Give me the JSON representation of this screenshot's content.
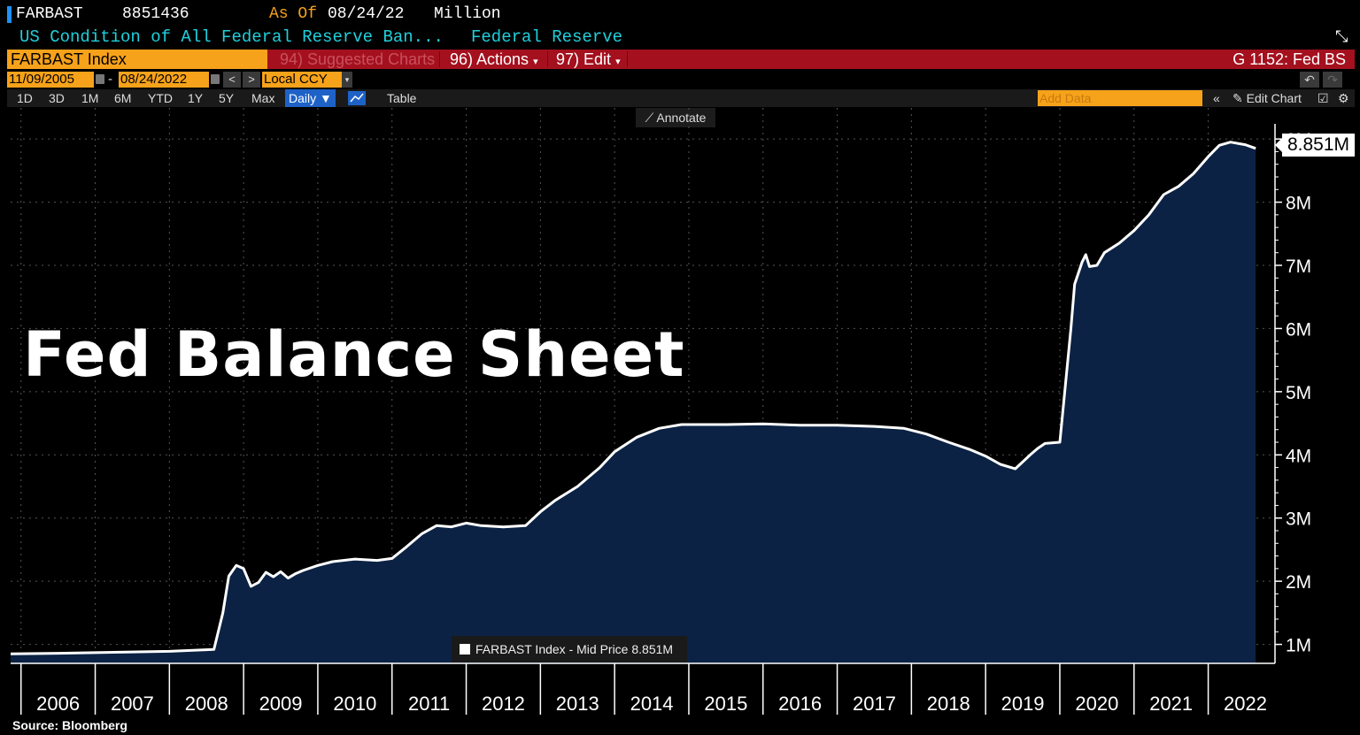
{
  "header": {
    "ticker": "FARBAST",
    "last_value": "8851436",
    "as_of_label": "As Of",
    "as_of_date": "08/24/22",
    "units": "Million",
    "description": "US Condition of All Federal Reserve Ban...",
    "source_name": "Federal Reserve"
  },
  "command_bar": {
    "security": "FARBAST Index",
    "suggested_charts": "94) Suggested Charts",
    "actions": "96) Actions",
    "edit": "97) Edit",
    "chart_id": "G 1152: Fed BS"
  },
  "date_range": {
    "start": "11/09/2005",
    "end": "08/24/2022",
    "currency": "Local CCY"
  },
  "periods": [
    "1D",
    "3D",
    "1M",
    "6M",
    "YTD",
    "1Y",
    "5Y",
    "Max"
  ],
  "frequency": "Daily ▼",
  "table_label": "Table",
  "add_data_placeholder": "Add Data",
  "edit_chart": "Edit Chart",
  "annotate": "Annotate",
  "overlay_title": "Fed Balance Sheet",
  "legend_text": "FARBAST Index - Mid Price 8.851M",
  "last_value_label": "8.851M",
  "source": "Source:  Bloomberg",
  "colors": {
    "area": "#0b2244",
    "line": "#ffffff",
    "background": "#000000",
    "accent": "#f6a21a",
    "bar": "#a4101e"
  },
  "chart_data": {
    "type": "area",
    "title": "",
    "xlabel": "",
    "ylabel": "",
    "x_ticks": [
      "2006",
      "2007",
      "2008",
      "2009",
      "2010",
      "2011",
      "2012",
      "2013",
      "2014",
      "2015",
      "2016",
      "2017",
      "2018",
      "2019",
      "2020",
      "2021",
      "2022"
    ],
    "y_ticks": [
      "1M",
      "2M",
      "3M",
      "4M",
      "5M",
      "6M",
      "7M",
      "8M",
      "9M"
    ],
    "y_tick_values": [
      1,
      2,
      3,
      4,
      5,
      6,
      7,
      8,
      9
    ],
    "ylim": [
      0.7,
      9.1
    ],
    "xlim": [
      2005.86,
      2022.9
    ],
    "grid": true,
    "series": [
      {
        "name": "FARBAST Index - Mid Price",
        "x": [
          2005.86,
          2006.5,
          2007.0,
          2007.5,
          2008.0,
          2008.6,
          2008.72,
          2008.8,
          2008.9,
          2009.0,
          2009.1,
          2009.2,
          2009.3,
          2009.4,
          2009.5,
          2009.6,
          2009.7,
          2009.8,
          2010.0,
          2010.2,
          2010.5,
          2010.8,
          2011.0,
          2011.2,
          2011.4,
          2011.6,
          2011.8,
          2012.0,
          2012.2,
          2012.5,
          2012.8,
          2013.0,
          2013.2,
          2013.5,
          2013.8,
          2014.0,
          2014.3,
          2014.6,
          2014.9,
          2015.5,
          2016.0,
          2016.5,
          2017.0,
          2017.5,
          2017.9,
          2018.2,
          2018.5,
          2018.8,
          2019.0,
          2019.2,
          2019.4,
          2019.6,
          2019.7,
          2019.8,
          2020.0,
          2020.15,
          2020.2,
          2020.3,
          2020.35,
          2020.4,
          2020.5,
          2020.6,
          2020.8,
          2021.0,
          2021.2,
          2021.4,
          2021.6,
          2021.8,
          2022.0,
          2022.15,
          2022.3,
          2022.5,
          2022.64
        ],
        "values": [
          0.85,
          0.86,
          0.87,
          0.88,
          0.89,
          0.92,
          1.5,
          2.08,
          2.25,
          2.2,
          1.92,
          1.98,
          2.14,
          2.07,
          2.15,
          2.05,
          2.12,
          2.17,
          2.25,
          2.31,
          2.35,
          2.33,
          2.36,
          2.55,
          2.75,
          2.88,
          2.86,
          2.92,
          2.88,
          2.86,
          2.88,
          3.1,
          3.28,
          3.5,
          3.8,
          4.05,
          4.28,
          4.42,
          4.48,
          4.48,
          4.49,
          4.47,
          4.47,
          4.45,
          4.42,
          4.33,
          4.2,
          4.08,
          3.98,
          3.85,
          3.78,
          4.0,
          4.1,
          4.18,
          4.2,
          6.0,
          6.7,
          7.05,
          7.17,
          6.98,
          7.0,
          7.2,
          7.35,
          7.55,
          7.8,
          8.12,
          8.25,
          8.45,
          8.72,
          8.9,
          8.95,
          8.91,
          8.851
        ]
      }
    ]
  }
}
